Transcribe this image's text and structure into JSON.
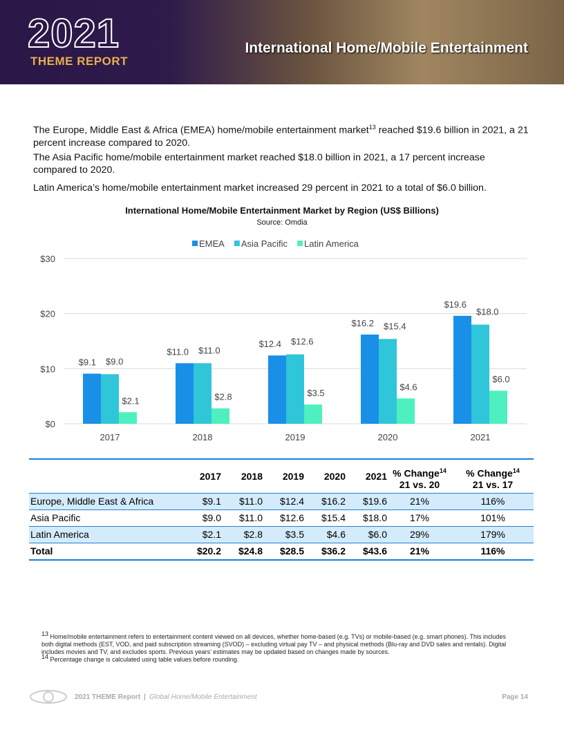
{
  "header": {
    "logo_year": "2021",
    "logo_sub": "THEME REPORT",
    "title": "International Home/Mobile Entertainment"
  },
  "paragraphs": [
    [
      "The Europe, Middle East & Africa (EMEA) home/mobile entertainment market",
      "13",
      " reached $19.6 billion in 2021, a 21 percent increase compared to 2020."
    ],
    [
      "The Asia Pacific home/mobile entertainment market reached $18.0 billion in 2021, a 17 percent increase compared to 2020."
    ],
    [
      "Latin America’s home/mobile entertainment market increased 29 percent in 2021 to a total of $6.0 billion."
    ]
  ],
  "chart_data": {
    "type": "bar",
    "title": "International Home/Mobile Entertainment Market by Region (US$ Billions)",
    "subtitle": "Source: Omdia",
    "categories": [
      "2017",
      "2018",
      "2019",
      "2020",
      "2021"
    ],
    "series": [
      {
        "name": "EMEA",
        "color": "#1a8fe8",
        "values": [
          9.1,
          11.0,
          12.4,
          16.2,
          19.6
        ],
        "value_labels": [
          "$9.1",
          "$11.0",
          "$12.4",
          "$16.2",
          "$19.6"
        ]
      },
      {
        "name": "Asia Pacific",
        "color": "#2ec6d8",
        "values": [
          9.0,
          11.0,
          12.6,
          15.4,
          18.0
        ],
        "value_labels": [
          "$9.0",
          "$11.0",
          "$12.6",
          "$15.4",
          "$18.0"
        ]
      },
      {
        "name": "Latin America",
        "color": "#4ff0bf",
        "values": [
          2.1,
          2.8,
          3.5,
          4.6,
          6.0
        ],
        "value_labels": [
          "$2.1",
          "$2.8",
          "$3.5",
          "$4.6",
          "$6.0"
        ]
      }
    ],
    "ylim": [
      0,
      30
    ],
    "yticks": [
      {
        "value": 0,
        "label": "$0"
      },
      {
        "value": 10,
        "label": "$10"
      },
      {
        "value": 20,
        "label": "$20"
      },
      {
        "value": 30,
        "label": "$30"
      }
    ],
    "grid": true,
    "legend": "top"
  },
  "table": {
    "columns": [
      {
        "text": "2017"
      },
      {
        "text": "2018"
      },
      {
        "text": "2019"
      },
      {
        "text": "2020"
      },
      {
        "text": "2021"
      },
      {
        "text": "% Change",
        "sup": "14",
        "line2": "21 vs. 20"
      },
      {
        "text": "% Change",
        "sup": "14",
        "line2": "21 vs. 17"
      }
    ],
    "rows": [
      [
        "Europe, Middle East & Africa",
        "$9.1",
        "$11.0",
        "$12.4",
        "$16.2",
        "$19.6",
        "21%",
        "116%"
      ],
      [
        "Asia Pacific",
        "$9.0",
        "$11.0",
        "$12.6",
        "$15.4",
        "$18.0",
        "17%",
        "101%"
      ],
      [
        "Latin America",
        "$2.1",
        "$2.8",
        "$3.5",
        "$4.6",
        "$6.0",
        "29%",
        "179%"
      ],
      [
        "Total",
        "$20.2",
        "$24.8",
        "$28.5",
        "$36.2",
        "$43.6",
        "21%",
        "116%"
      ]
    ]
  },
  "footnotes": [
    {
      "num": "13",
      "text": "Home/mobile entertainment refers to entertainment content viewed on all devices, whether home-based (e.g. TVs) or mobile-based (e.g. smart phones). This includes both digital methods (EST, VOD, and paid subscription streaming (SVOD) – excluding virtual pay TV – and physical methods (Blu-ray and DVD sales and rentals). Digital includes movies and TV, and excludes sports. Previous years’ estimates may be updated based on changes made by sources."
    },
    {
      "num": "14",
      "text": "Percentage change is calculated using table values before rounding."
    }
  ],
  "footer": {
    "report": "2021 THEME Report",
    "separator": "|",
    "section": "Global Home/Mobile Entertainment",
    "page": "Page 14"
  }
}
